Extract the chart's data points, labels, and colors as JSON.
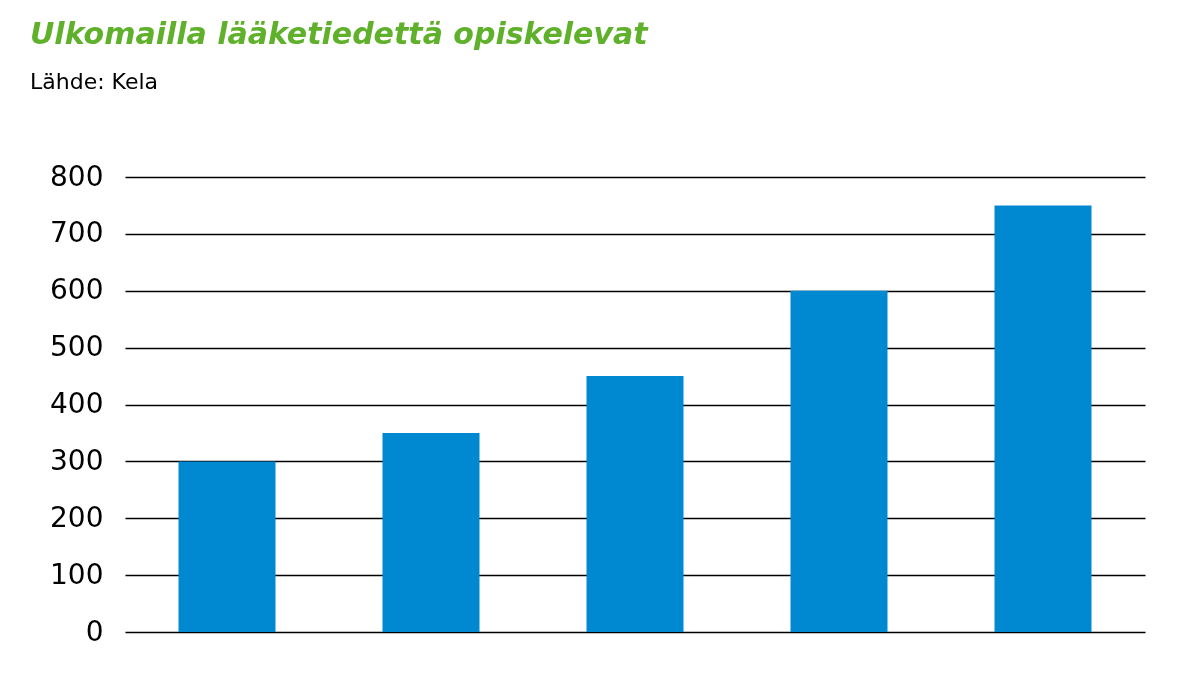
{
  "chart_data": {
    "type": "bar",
    "title": "Ulkomailla lääketiedettä opiskelevat",
    "subtitle": "Lähde: Kela",
    "categories": [
      null,
      null,
      null,
      null,
      null
    ],
    "values": [
      300,
      350,
      450,
      600,
      750
    ],
    "color": "#0088d1",
    "ylim": [
      0,
      800
    ],
    "yticks": [
      0,
      100,
      200,
      300,
      400,
      500,
      600,
      700,
      800
    ],
    "grid": "y",
    "tick_labels": "y"
  }
}
